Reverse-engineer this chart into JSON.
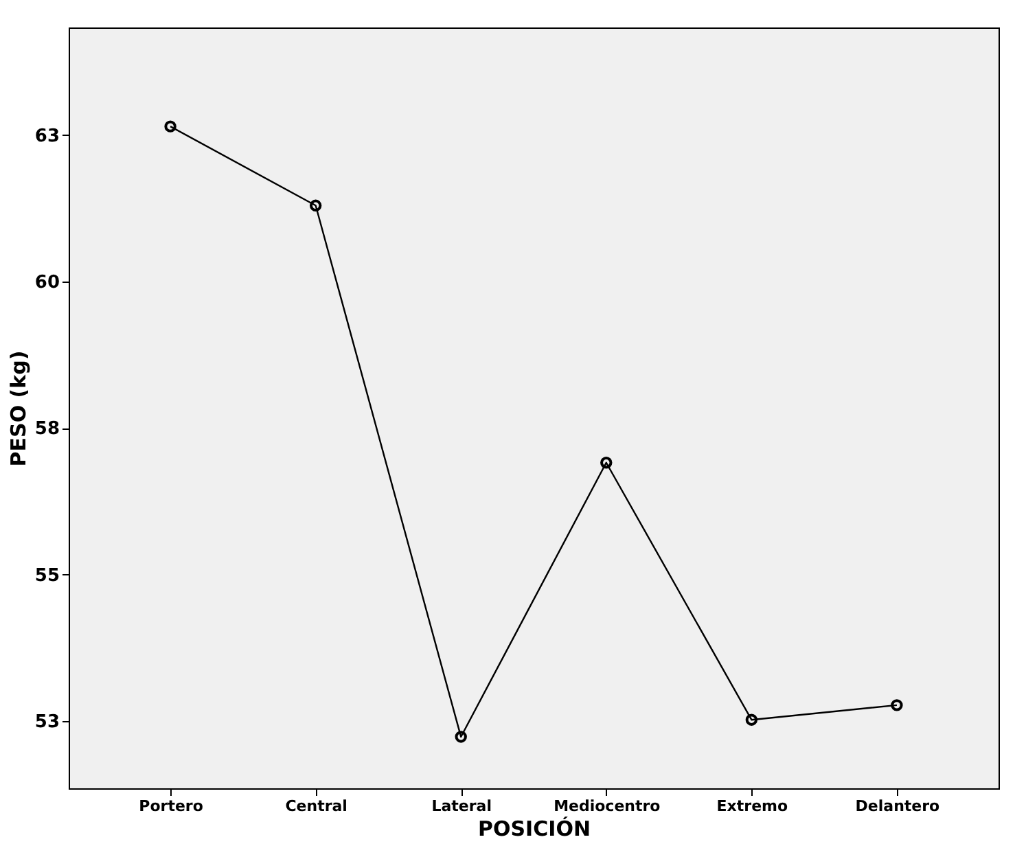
{
  "chart_data": {
    "type": "line",
    "xlabel": "POSICIÓN",
    "ylabel": "PESO (kg)",
    "categories": [
      "Portero",
      "Central",
      "Lateral",
      "Mediocentro",
      "Extremo",
      "Delantero"
    ],
    "values": [
      62.65,
      61.3,
      52.23,
      56.91,
      52.52,
      52.77
    ],
    "color": "#000000",
    "marker": "circle",
    "line_style": "solid",
    "grid": false,
    "ylim": [
      51.35,
      64.34
    ],
    "yticks": [
      {
        "value": 52.5,
        "label": "53"
      },
      {
        "value": 55,
        "label": "55"
      },
      {
        "value": 57.5,
        "label": "58"
      },
      {
        "value": 60,
        "label": "60"
      },
      {
        "value": 62.5,
        "label": "63"
      }
    ]
  }
}
